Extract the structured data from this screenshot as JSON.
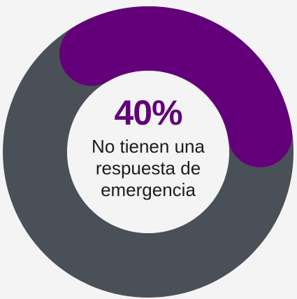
{
  "chart_data": {
    "type": "pie",
    "title": "",
    "slices": [
      {
        "label": "No tienen una respuesta de emergencia",
        "value": 40,
        "color": "#630079"
      },
      {
        "label": "",
        "value": 60,
        "color": "#4a5058"
      }
    ],
    "center_value": "40%",
    "center_caption": [
      "No tienen una",
      "respuesta de",
      "emergencia"
    ]
  },
  "colors": {
    "accent": "#630079",
    "remainder": "#4a5058",
    "background": "#f4f4f4",
    "hole": "#f4f4f4"
  }
}
